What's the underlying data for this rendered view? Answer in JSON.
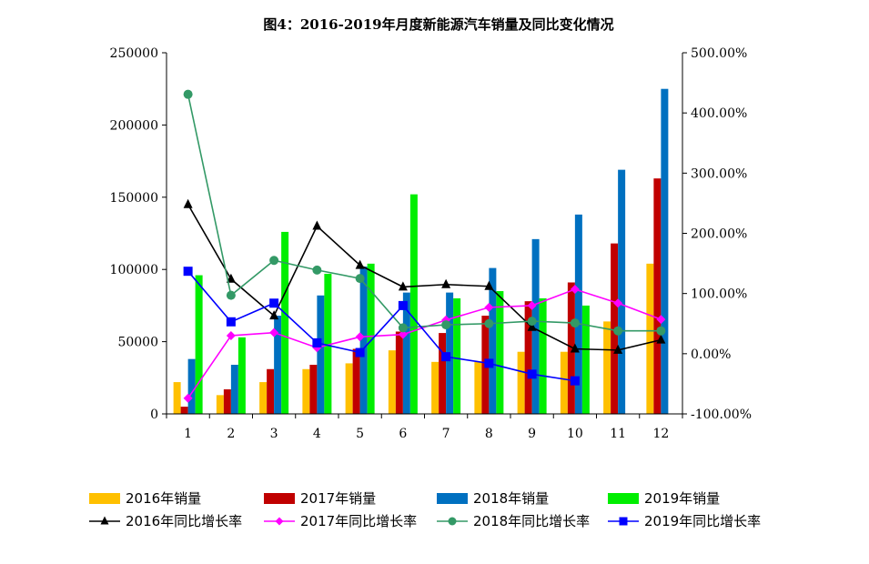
{
  "chart_data": {
    "type": "bar",
    "title": "图4：2016-2019年月度新能源汽车销量及同比变化情况",
    "categories": [
      "1",
      "2",
      "3",
      "4",
      "5",
      "6",
      "7",
      "8",
      "9",
      "10",
      "11",
      "12"
    ],
    "y_left": {
      "ylim": [
        0,
        250000
      ],
      "ticks": [
        "0",
        "50000",
        "100000",
        "150000",
        "200000",
        "250000"
      ]
    },
    "y_right": {
      "ylim": [
        -100,
        500
      ],
      "ticks": [
        "-100.00%",
        "0.00%",
        "100.00%",
        "200.00%",
        "300.00%",
        "400.00%",
        "500.00%"
      ]
    },
    "bar_series": [
      {
        "name": "2016年销量",
        "color": "#FFC000",
        "values": [
          22000,
          13000,
          22000,
          31000,
          35000,
          44000,
          36000,
          36000,
          43000,
          43000,
          64000,
          104000
        ]
      },
      {
        "name": "2017年销量",
        "color": "#C00000",
        "values": [
          5000,
          17000,
          31000,
          34000,
          45000,
          57000,
          56000,
          68000,
          78000,
          91000,
          118000,
          163000
        ]
      },
      {
        "name": "2018年销量",
        "color": "#0070C0",
        "values": [
          38000,
          34000,
          68000,
          82000,
          102000,
          84000,
          84000,
          101000,
          121000,
          138000,
          169000,
          225000
        ]
      },
      {
        "name": "2019年销量",
        "color": "#00EE00",
        "values": [
          96000,
          53000,
          126000,
          97000,
          104000,
          152000,
          80000,
          85000,
          80000,
          75000,
          null,
          null
        ]
      }
    ],
    "line_series": [
      {
        "name": "2016年同比增长率",
        "color": "#000000",
        "marker": "triangle",
        "values": [
          248,
          124,
          63,
          212,
          147,
          111,
          115,
          112,
          44,
          8,
          6,
          23
        ]
      },
      {
        "name": "2017年同比增长率",
        "color": "#FF00FF",
        "marker": "diamond",
        "values": [
          -74,
          30,
          35,
          10,
          28,
          32,
          56,
          77,
          80,
          107,
          84,
          57
        ]
      },
      {
        "name": "2018年同比增长率",
        "color": "#339966",
        "marker": "circle",
        "values": [
          431,
          97,
          155,
          139,
          125,
          43,
          48,
          50,
          54,
          51,
          38,
          38
        ]
      },
      {
        "name": "2019年同比增长率",
        "color": "#0000FF",
        "marker": "square",
        "values": [
          137,
          53,
          84,
          18,
          2,
          80,
          -5,
          -16,
          -34,
          -45,
          null,
          null
        ]
      }
    ],
    "legend_position": "bottom",
    "grid": false
  }
}
